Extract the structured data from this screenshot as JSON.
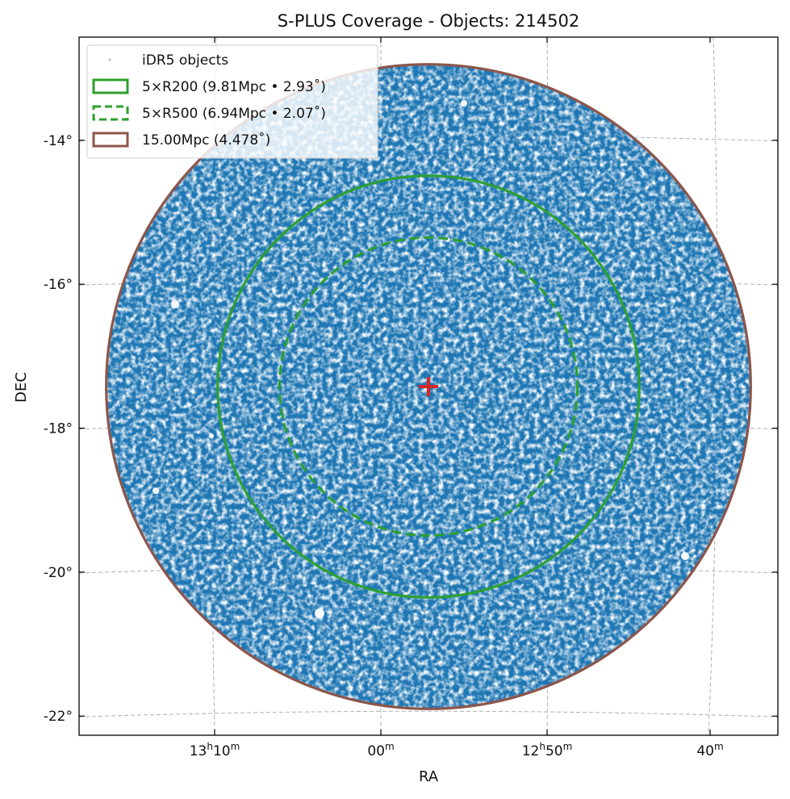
{
  "chart_data": {
    "type": "scatter",
    "title": "S-PLUS Coverage - Objects: 214502",
    "xlabel": "RA",
    "ylabel": "DEC",
    "projection": "sky (RA/DEC) with curved graticule",
    "object_count": 214502,
    "ra_ticks": [
      {
        "label_main": "13",
        "label_h": "h",
        "label_min": "10",
        "label_m": "m"
      },
      {
        "label_main": "",
        "label_h": "",
        "label_min": "00",
        "label_m": "m"
      },
      {
        "label_main": "12",
        "label_h": "h",
        "label_min": "50",
        "label_m": "m"
      },
      {
        "label_main": "",
        "label_h": "",
        "label_min": "40",
        "label_m": "m"
      }
    ],
    "dec_ticks": [
      "-14°",
      "-16°",
      "-18°",
      "-20°",
      "-22°"
    ],
    "dec_tick_values": [
      -14,
      -16,
      -18,
      -20,
      -22
    ],
    "ylim": [
      -22.3,
      -12.6
    ],
    "center_marker": {
      "symbol": "+",
      "color": "#d62728"
    },
    "grid": true,
    "legend": {
      "placement": "top-left",
      "entries": [
        {
          "label": "iDR5 objects",
          "kind": "points",
          "color": "#c9c9c9"
        },
        {
          "label": "5×R200 (9.81Mpc • 2.93˚)",
          "kind": "solid",
          "color": "#2ca02c"
        },
        {
          "label": "5×R500 (6.94Mpc • 2.07˚)",
          "kind": "dashed",
          "color": "#2ca02c"
        },
        {
          "label": "15.00Mpc (4.478˚)",
          "kind": "solid",
          "color": "#8c564b"
        }
      ]
    },
    "series": [
      {
        "name": "iDR5 objects",
        "color": "#1f77b4"
      },
      {
        "name": "5×R200 (9.81Mpc • 2.93˚)",
        "radius_deg": 2.93,
        "color": "#2ca02c",
        "style": "solid"
      },
      {
        "name": "5×R500 (6.94Mpc • 2.07˚)",
        "radius_deg": 2.07,
        "color": "#2ca02c",
        "style": "dashed"
      },
      {
        "name": "15.00Mpc (4.478˚)",
        "radius_deg": 4.478,
        "color": "#8c564b",
        "style": "solid"
      }
    ],
    "colors": {
      "points": "#1f77b4",
      "points_light": "#5b9fd0",
      "green": "#2ca02c",
      "brown": "#8c564b",
      "red": "#d62728",
      "grid": "#b0b0b0"
    }
  }
}
